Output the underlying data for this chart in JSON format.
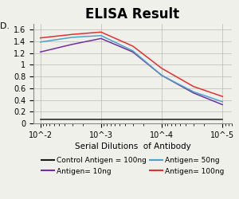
{
  "title": "ELISA Result",
  "xlabel": "Serial Dilutions  of Antibody",
  "x_values": [
    0.01,
    0.003,
    0.001,
    0.0003,
    0.0001,
    3e-05,
    1e-05
  ],
  "x_tick_values": [
    0.01,
    0.001,
    0.0001,
    1e-05
  ],
  "x_tick_labels": [
    "10^-2",
    "10^-3",
    "10^-4",
    "10^-5"
  ],
  "ylim": [
    0,
    1.7
  ],
  "yticks": [
    0,
    0.2,
    0.4,
    0.6,
    0.8,
    1.0,
    1.2,
    1.4,
    1.6
  ],
  "ytick_labels": [
    "0",
    "0.2",
    "0.4",
    "0.6",
    "0.8",
    "1",
    "1.2",
    "1.4",
    "1.6"
  ],
  "lines": [
    {
      "label": "Control Antigen = 100ng",
      "color": "#1a1a1a",
      "values": [
        0.07,
        0.07,
        0.07,
        0.07,
        0.07,
        0.07,
        0.07
      ]
    },
    {
      "label": "Antigen= 10ng",
      "color": "#7030A0",
      "values": [
        1.22,
        1.35,
        1.45,
        1.22,
        0.82,
        0.52,
        0.32
      ]
    },
    {
      "label": "Antigen= 50ng",
      "color": "#4BA3C7",
      "values": [
        1.39,
        1.47,
        1.5,
        1.24,
        0.82,
        0.54,
        0.37
      ]
    },
    {
      "label": "Antigen= 100ng",
      "color": "#E03030",
      "values": [
        1.46,
        1.52,
        1.56,
        1.32,
        0.94,
        0.63,
        0.46
      ]
    }
  ],
  "background_color": "#f0f0eb",
  "title_fontsize": 12,
  "legend_fontsize": 6.5,
  "axis_label_fontsize": 7.5,
  "tick_fontsize": 7,
  "ylabel_fontsize": 8
}
